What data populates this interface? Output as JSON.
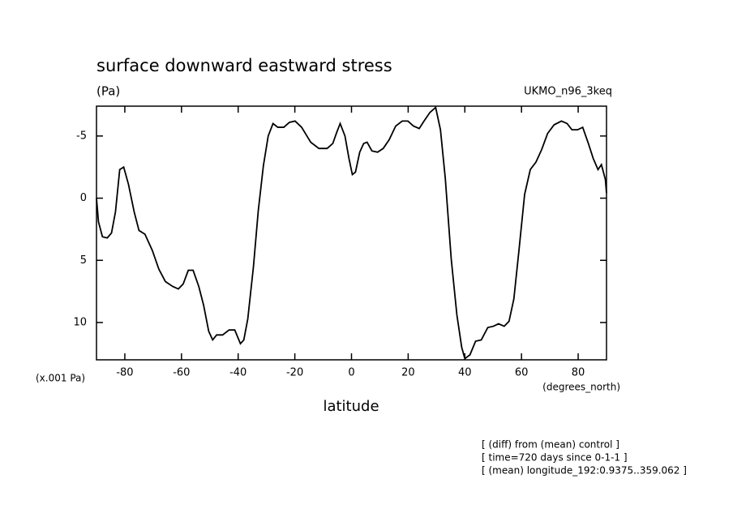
{
  "chart_data": {
    "type": "line",
    "title": "surface downward eastward stress",
    "units_label": "(Pa)",
    "dataset_label": "UKMO_n96_3keq",
    "y_scale_label": "(x.001 Pa)",
    "x_units_label": "(degrees_north)",
    "x_label": "latitude",
    "footnotes": [
      "[ (diff) from (mean) control ]",
      "[ time=720 days since 0-1-1 ]",
      "[ (mean) longitude_192:0.9375..359.062 ]"
    ],
    "xlim": [
      -90,
      90
    ],
    "ylim": [
      13,
      -7.4
    ],
    "xticks": [
      -80,
      -60,
      -40,
      -20,
      0,
      20,
      40,
      60,
      80
    ],
    "yticks": [
      -5,
      0,
      5,
      10
    ],
    "series": [
      {
        "color": "#000000",
        "x": [
          -90,
          -89.3,
          -87.9,
          -86.2,
          -84.7,
          -83.3,
          -81.8,
          -80.4,
          -78.7,
          -76.7,
          -75,
          -72.9,
          -70.3,
          -68,
          -65.7,
          -63.1,
          -61.1,
          -59.4,
          -57.6,
          -55.9,
          -53.9,
          -52.2,
          -50.4,
          -49,
          -47.6,
          -45.5,
          -43.2,
          -41.2,
          -39.2,
          -38,
          -36.6,
          -34.6,
          -32.9,
          -31.1,
          -29.4,
          -27.7,
          -26,
          -23.9,
          -21.9,
          -19.9,
          -17.6,
          -14.4,
          -11.5,
          -8.6,
          -6.6,
          -5.2,
          -4,
          -2.3,
          -0.9,
          0.3,
          1.4,
          2.9,
          4.3,
          5.5,
          7.2,
          9.2,
          11.2,
          13.3,
          15.6,
          17.9,
          19.9,
          21.9,
          23.9,
          25.6,
          27.7,
          29.7,
          31.4,
          33.1,
          35.2,
          37.2,
          38.9,
          40,
          41.8,
          43.8,
          45.8,
          48.1,
          50.1,
          51.9,
          53.9,
          55.6,
          57.3,
          59.1,
          61.1,
          63.1,
          65.1,
          67.1,
          69.2,
          71.5,
          74.1,
          76.1,
          77.8,
          79.8,
          81.6,
          83.6,
          85.3,
          87,
          88.2,
          89.6,
          90
        ],
        "values": [
          0,
          1.9,
          3.1,
          3.2,
          2.8,
          1.1,
          -2.3,
          -2.5,
          -1.1,
          1.1,
          2.6,
          2.9,
          4.2,
          5.7,
          6.7,
          7.1,
          7.3,
          6.9,
          5.8,
          5.8,
          7.1,
          8.6,
          10.7,
          11.4,
          11,
          11,
          10.6,
          10.6,
          11.7,
          11.4,
          9.7,
          5.5,
          1,
          -2.6,
          -5,
          -6,
          -5.7,
          -5.7,
          -6.1,
          -6.2,
          -5.7,
          -4.5,
          -4,
          -4,
          -4.4,
          -5.3,
          -6,
          -5,
          -3.2,
          -1.9,
          -2.1,
          -3.7,
          -4.4,
          -4.5,
          -3.8,
          -3.7,
          -4,
          -4.7,
          -5.8,
          -6.2,
          -6.2,
          -5.8,
          -5.6,
          -6.2,
          -6.9,
          -7.3,
          -5.5,
          -1.6,
          4.9,
          9.4,
          12,
          12.9,
          12.6,
          11.5,
          11.4,
          10.4,
          10.3,
          10.1,
          10.3,
          9.9,
          8.1,
          4.2,
          -0.3,
          -2.3,
          -2.9,
          -3.9,
          -5.2,
          -5.9,
          -6.2,
          -6,
          -5.5,
          -5.5,
          -5.7,
          -4.4,
          -3.2,
          -2.3,
          -2.7,
          -1.5,
          -0.4
        ]
      }
    ]
  }
}
